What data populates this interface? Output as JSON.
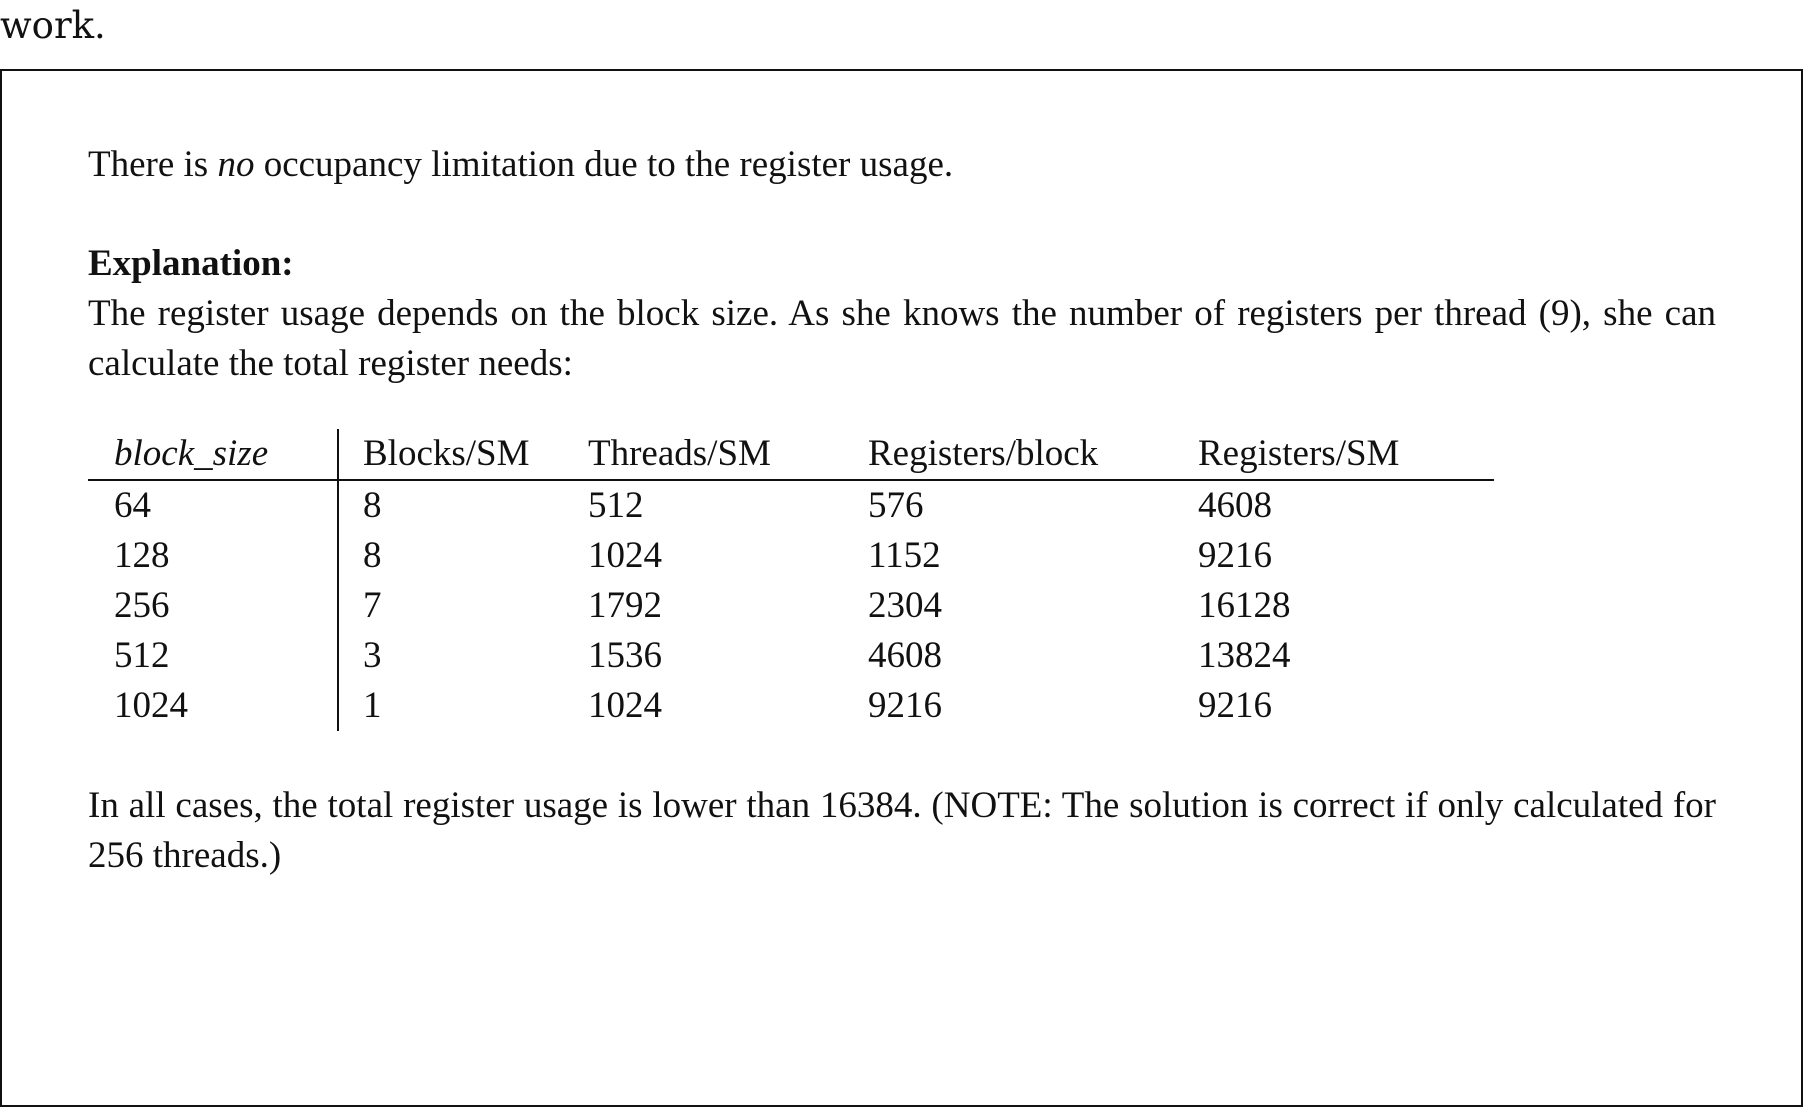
{
  "top_fragment": "work.",
  "answer": {
    "statement": {
      "before": "There is ",
      "emphasis": "no",
      "after": " occupancy limitation due to the register usage."
    },
    "explanation_heading": "Explanation:",
    "explanation_text": "The register usage depends on the block size. As she knows the number of registers per thread (9), she can calculate the total register needs:",
    "table": {
      "headers": [
        "block_size",
        "Blocks/SM",
        "Threads/SM",
        "Registers/block",
        "Registers/SM"
      ],
      "rows": [
        [
          "64",
          "8",
          "512",
          "576",
          "4608"
        ],
        [
          "128",
          "8",
          "1024",
          "1152",
          "9216"
        ],
        [
          "256",
          "7",
          "1792",
          "2304",
          "16128"
        ],
        [
          "512",
          "3",
          "1536",
          "4608",
          "13824"
        ],
        [
          "1024",
          "1",
          "1024",
          "9216",
          "9216"
        ]
      ]
    },
    "conclusion": "In all cases, the total register usage is lower than 16384. (NOTE: The solution is correct if only calculated for 256 threads.)"
  }
}
